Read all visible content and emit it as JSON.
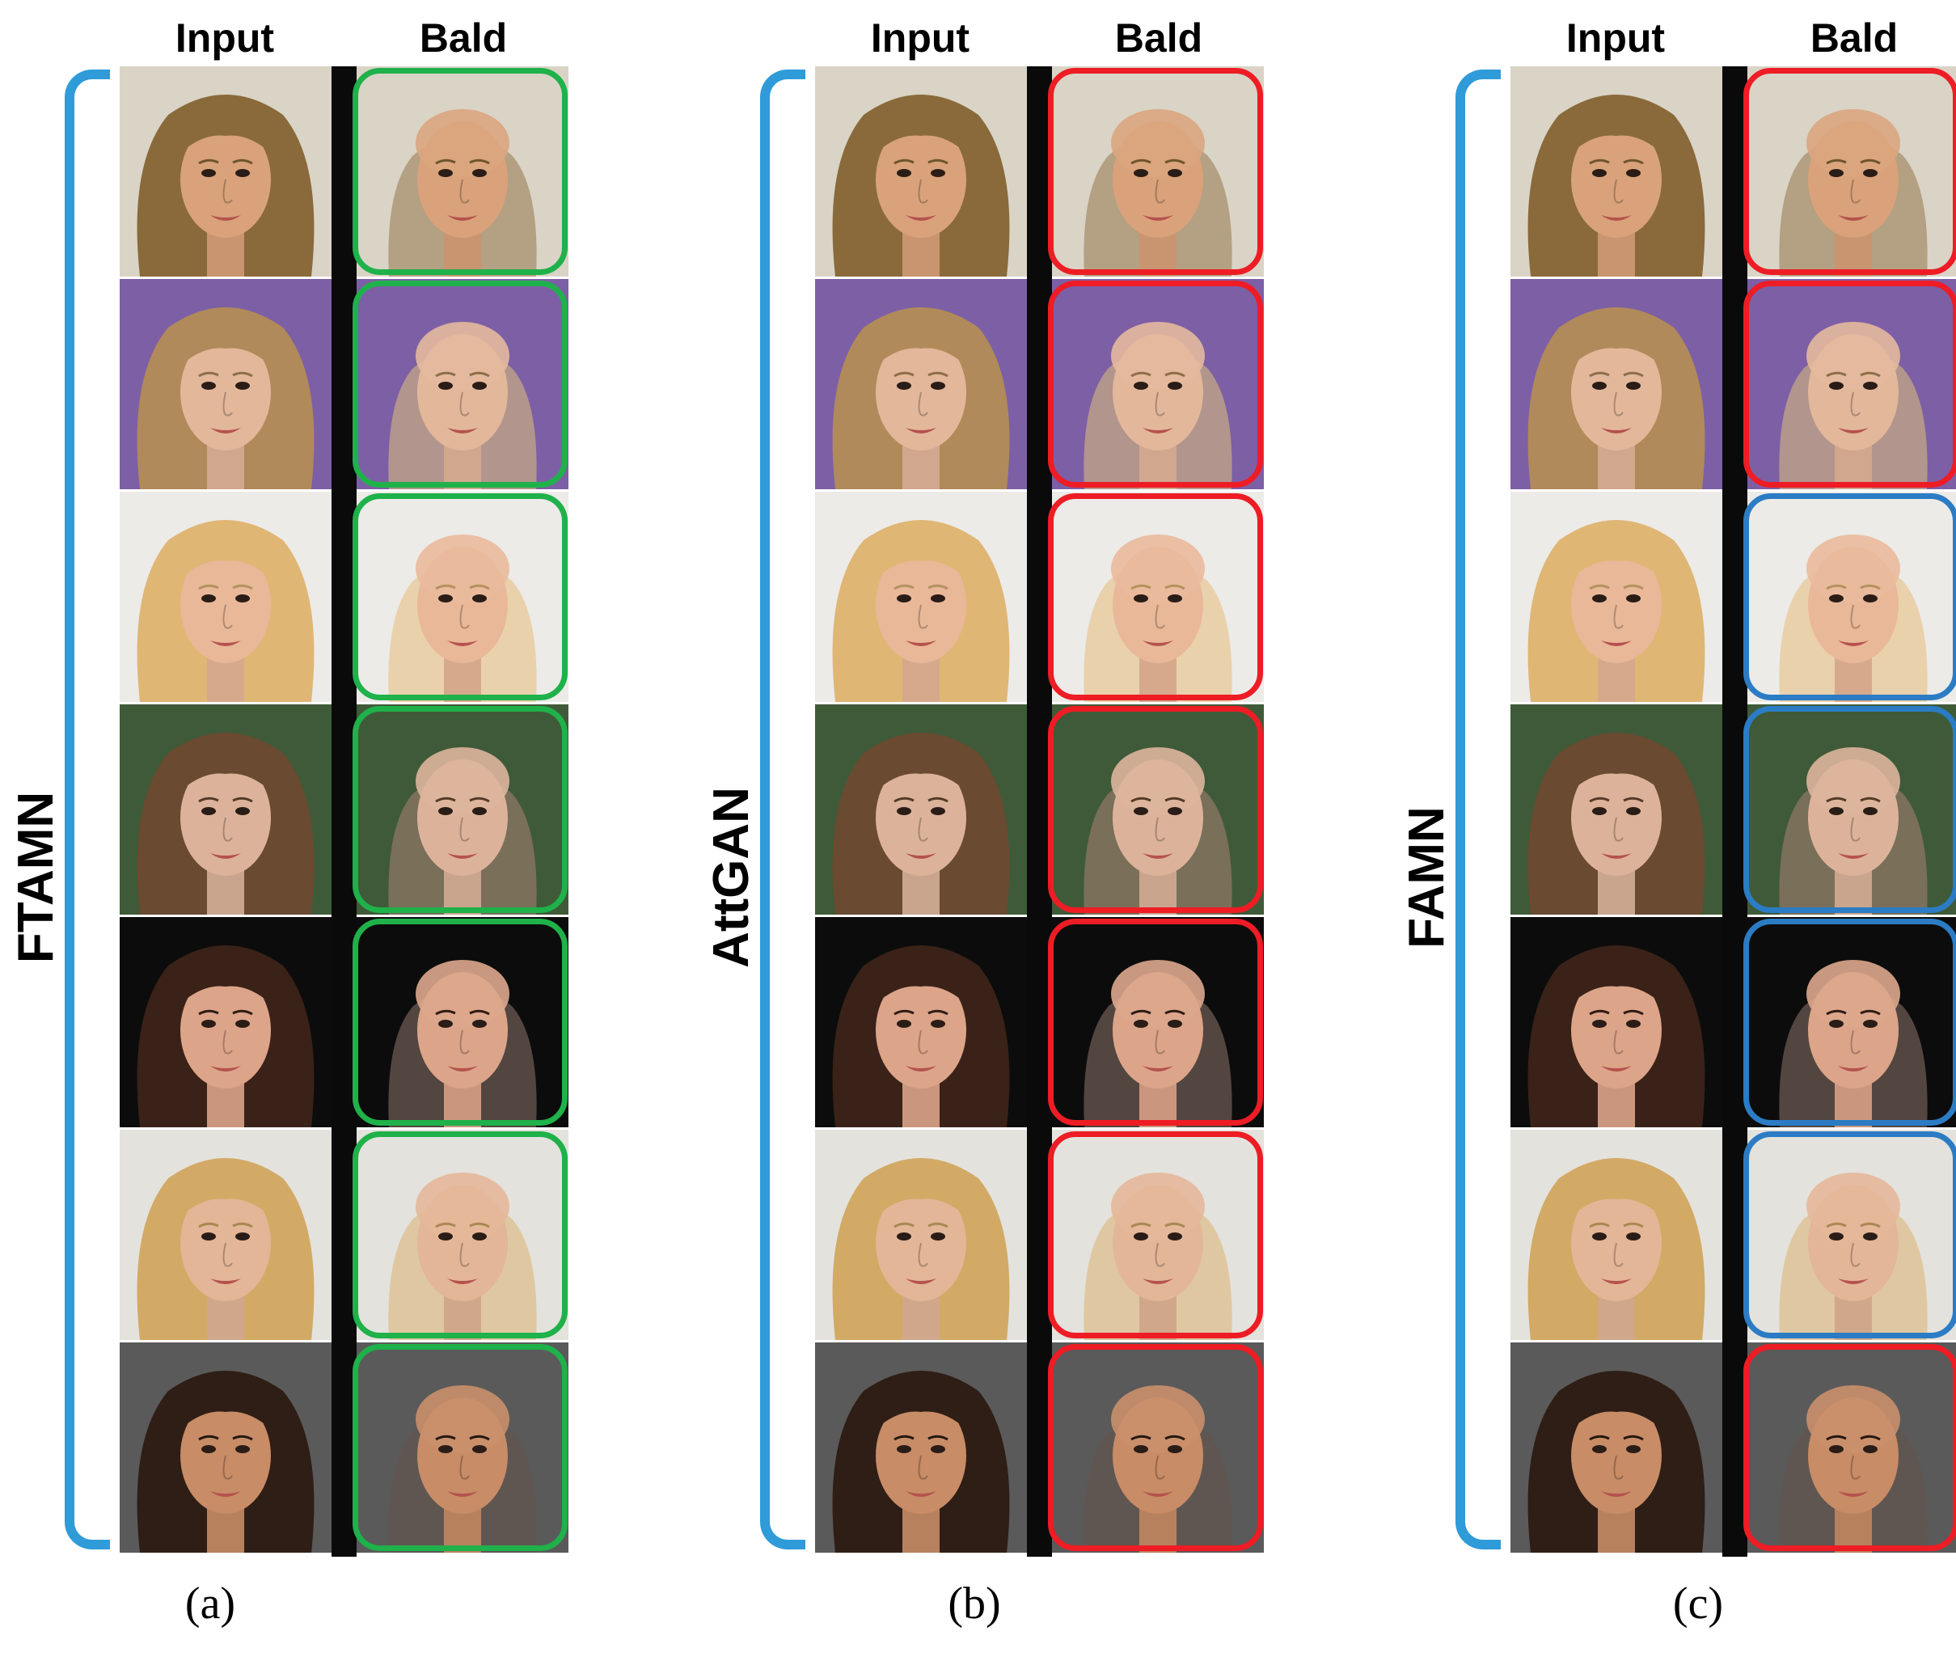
{
  "colors": {
    "bracket": "#2f9bd8",
    "frame_green": "#1fb14a",
    "frame_red": "#ee1c24",
    "frame_blue": "#2b7cc4"
  },
  "panels": [
    {
      "method": "FTAMN",
      "input_header": "Input",
      "output_header": "Bald",
      "sub_label": "(a)",
      "frames": [
        "green",
        "green",
        "green",
        "green",
        "green",
        "green",
        "green"
      ]
    },
    {
      "method": "AttGAN",
      "input_header": "Input",
      "output_header": "Bald",
      "sub_label": "(b)",
      "frames": [
        "red",
        "red",
        "red",
        "red",
        "red",
        "red",
        "red"
      ]
    },
    {
      "method": "FAMN",
      "input_header": "Input",
      "output_header": "Bald",
      "sub_label": "(c)",
      "frames": [
        "red",
        "red",
        "blue",
        "blue",
        "blue",
        "blue",
        "red"
      ]
    }
  ],
  "faces": [
    {
      "bg": "#d9d4c6",
      "hair": "#8a6a3a",
      "skin": "#d9a27a",
      "name": "face-1"
    },
    {
      "bg": "#7d5fa6",
      "hair": "#b08a5a",
      "skin": "#e3b79a",
      "name": "face-2"
    },
    {
      "bg": "#ecebe8",
      "hair": "#e0b675",
      "skin": "#e9b899",
      "name": "face-3"
    },
    {
      "bg": "#3f5a38",
      "hair": "#6a4a30",
      "skin": "#dcb39a",
      "name": "face-4"
    },
    {
      "bg": "#0c0c0c",
      "hair": "#3a2218",
      "skin": "#dca489",
      "name": "face-5"
    },
    {
      "bg": "#e4e2dd",
      "hair": "#d2aa66",
      "skin": "#e3b697",
      "name": "face-6"
    },
    {
      "bg": "#5a5a5a",
      "hair": "#2e1e16",
      "skin": "#c88c66",
      "name": "face-7"
    }
  ]
}
